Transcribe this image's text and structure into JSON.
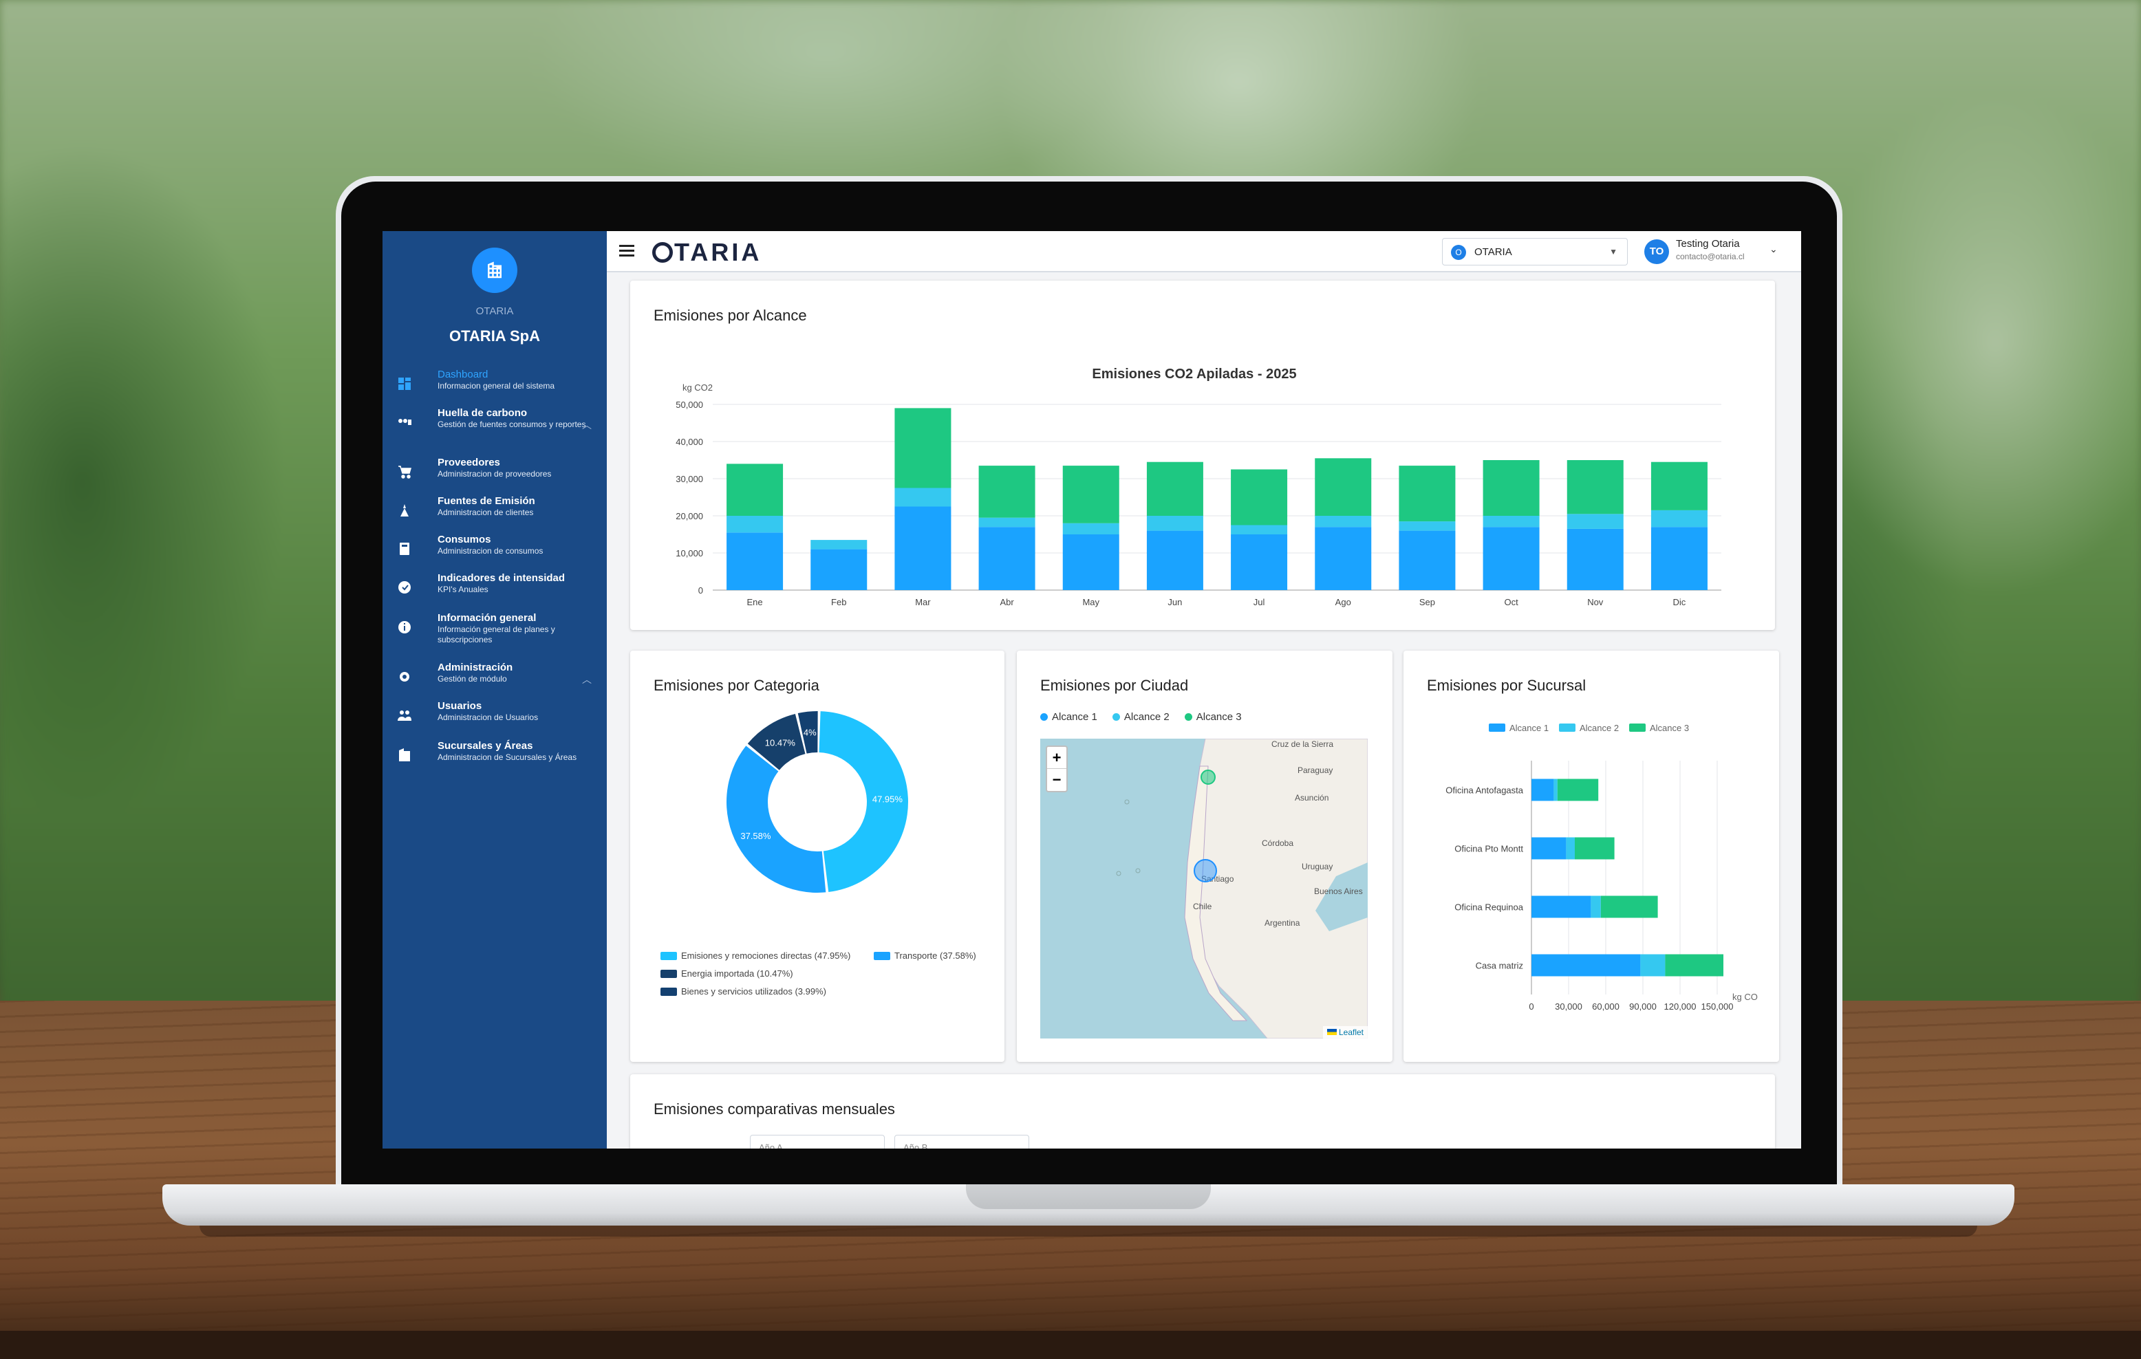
{
  "app": {
    "brand": "OTARIA",
    "org_small": "OTARIA",
    "org_name": "OTARIA SpA"
  },
  "sidebar": {
    "items": [
      {
        "title": "Dashboard",
        "subtitle": "Informacion general del sistema",
        "icon": "dashboard-icon",
        "active": true
      },
      {
        "title": "Huella de carbono",
        "subtitle": "Gestión de fuentes consumos y reportes",
        "icon": "carbon-footprint-icon",
        "expanded": true
      },
      {
        "title": "Proveedores",
        "subtitle": "Administracion de proveedores",
        "icon": "cart-icon"
      },
      {
        "title": "Fuentes de Emisión",
        "subtitle": "Administracion de clientes",
        "icon": "emission-source-icon"
      },
      {
        "title": "Consumos",
        "subtitle": "Administracion de consumos",
        "icon": "consumption-icon"
      },
      {
        "title": "Indicadores de intensidad",
        "subtitle": "KPI's Anuales",
        "icon": "kpi-icon"
      },
      {
        "title": "Información general",
        "subtitle": "Información general de planes y subscripciones",
        "icon": "info-icon"
      },
      {
        "title": "Administración",
        "subtitle": "Gestión de módulo",
        "icon": "gear-icon",
        "expanded": true
      },
      {
        "title": "Usuarios",
        "subtitle": "Administracion de Usuarios",
        "icon": "users-icon"
      },
      {
        "title": "Sucursales y Áreas",
        "subtitle": "Administracion de Sucursales y Áreas",
        "icon": "building-icon"
      }
    ]
  },
  "topbar": {
    "org_select": {
      "badge": "O",
      "value": "OTARIA"
    },
    "user": {
      "initials": "TO",
      "name": "Testing Otaria",
      "email": "contacto@otaria.cl"
    }
  },
  "cards": {
    "alcance_title": "Emisiones por Alcance",
    "categoria_title": "Emisiones por Categoria",
    "ciudad_title": "Emisiones por Ciudad",
    "sucursal_title": "Emisiones por Sucursal",
    "comparativas_title": "Emisiones comparativas mensuales",
    "comparativas_inputs": [
      "Año A",
      "Año B"
    ]
  },
  "colors": {
    "alcance1": "#1aa3ff",
    "alcance2": "#35c8f0",
    "alcance3": "#1ec882",
    "sidebar": "#1a4a86",
    "donut_directas": "#1ec3ff",
    "donut_transporte": "#1aa3ff",
    "donut_energia": "#16406b",
    "donut_bienes": "#134070"
  },
  "chart_data": [
    {
      "type": "bar",
      "stacked": true,
      "title": "Emisiones CO2 Apiladas - 2025",
      "ylabel": "kg CO2",
      "ylim": [
        0,
        50000
      ],
      "yticks": [
        "0",
        "10,000",
        "20,000",
        "30,000",
        "40,000",
        "50,000"
      ],
      "categories": [
        "Ene",
        "Feb",
        "Mar",
        "Abr",
        "May",
        "Jun",
        "Jul",
        "Ago",
        "Sep",
        "Oct",
        "Nov",
        "Dic"
      ],
      "series": [
        {
          "name": "Alcance 1",
          "values": [
            15500,
            11000,
            22500,
            17000,
            15000,
            16000,
            15000,
            17000,
            16000,
            17000,
            16500,
            17000
          ]
        },
        {
          "name": "Alcance 2",
          "values": [
            4500,
            2500,
            5000,
            2500,
            3000,
            4000,
            2500,
            3000,
            2500,
            3000,
            4000,
            4500
          ]
        },
        {
          "name": "Alcance 3",
          "values": [
            14000,
            0,
            21500,
            14000,
            15500,
            14500,
            15000,
            15500,
            15000,
            15000,
            14500,
            13000
          ]
        }
      ],
      "grid": true
    },
    {
      "type": "pie",
      "donut": true,
      "categories": [
        "Emisiones y remociones directas (47.95%)",
        "Transporte (37.58%)",
        "Energia importada (10.47%)",
        "Bienes y servicios utilizados (3.99%)"
      ],
      "values": [
        47.95,
        37.58,
        10.47,
        3.99
      ],
      "slice_labels": [
        "47.95%",
        "37.58%",
        "10.47%",
        "4%"
      ],
      "legend": "bottom"
    },
    {
      "type": "bar",
      "orientation": "horizontal",
      "stacked": true,
      "categories": [
        "Oficina Antofagasta",
        "Oficina Pto Montt",
        "Oficina Requinoa",
        "Casa matriz"
      ],
      "series": [
        {
          "name": "Alcance 1",
          "values": [
            18000,
            28000,
            48000,
            88000
          ]
        },
        {
          "name": "Alcance 2",
          "values": [
            3000,
            7000,
            8000,
            20000
          ]
        },
        {
          "name": "Alcance 3",
          "values": [
            33000,
            32000,
            46000,
            47000
          ]
        }
      ],
      "xlim": [
        0,
        150000
      ],
      "xticks": [
        "0",
        "30,000",
        "60,000",
        "90,000",
        "120,000",
        "150,000"
      ],
      "xlabel": "kg CO",
      "legend": "top"
    }
  ],
  "map": {
    "legend": [
      "Alcance 1",
      "Alcance 2",
      "Alcance 3"
    ],
    "zoom_in": "+",
    "zoom_out": "−",
    "labels": [
      "Cruz de la Sierra",
      "Paraguay",
      "Asunción",
      "Córdoba",
      "Uruguay",
      "Buenos Aires",
      "Argentina",
      "Santiago",
      "Chile"
    ],
    "attribution": "Leaflet"
  }
}
